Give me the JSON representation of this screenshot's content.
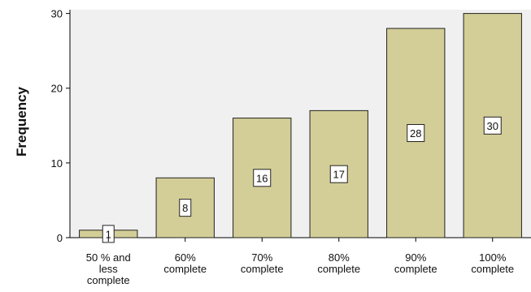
{
  "chart_data": {
    "type": "bar",
    "categories": [
      [
        "50 % and",
        "less",
        "complete"
      ],
      [
        "60%",
        "complete"
      ],
      [
        "70%",
        "complete"
      ],
      [
        "80%",
        "complete"
      ],
      [
        "90%",
        "complete"
      ],
      [
        "100%",
        "complete"
      ]
    ],
    "values": [
      1,
      8,
      16,
      17,
      28,
      30
    ],
    "data_labels": [
      "1",
      "8",
      "16",
      "17",
      "28",
      "30"
    ],
    "ylabel": "Frequency",
    "xlabel": "",
    "ylim": [
      0,
      30.5
    ],
    "yticks": [
      0,
      10,
      20,
      30
    ],
    "ytick_labels": [
      "0",
      "10",
      "20",
      "30"
    ],
    "grid": false,
    "colors": {
      "plot_background": "#f0f0f0",
      "bar_fill": "#d3ce97",
      "bar_stroke": "#222222",
      "label_box": "#ffffff"
    }
  }
}
